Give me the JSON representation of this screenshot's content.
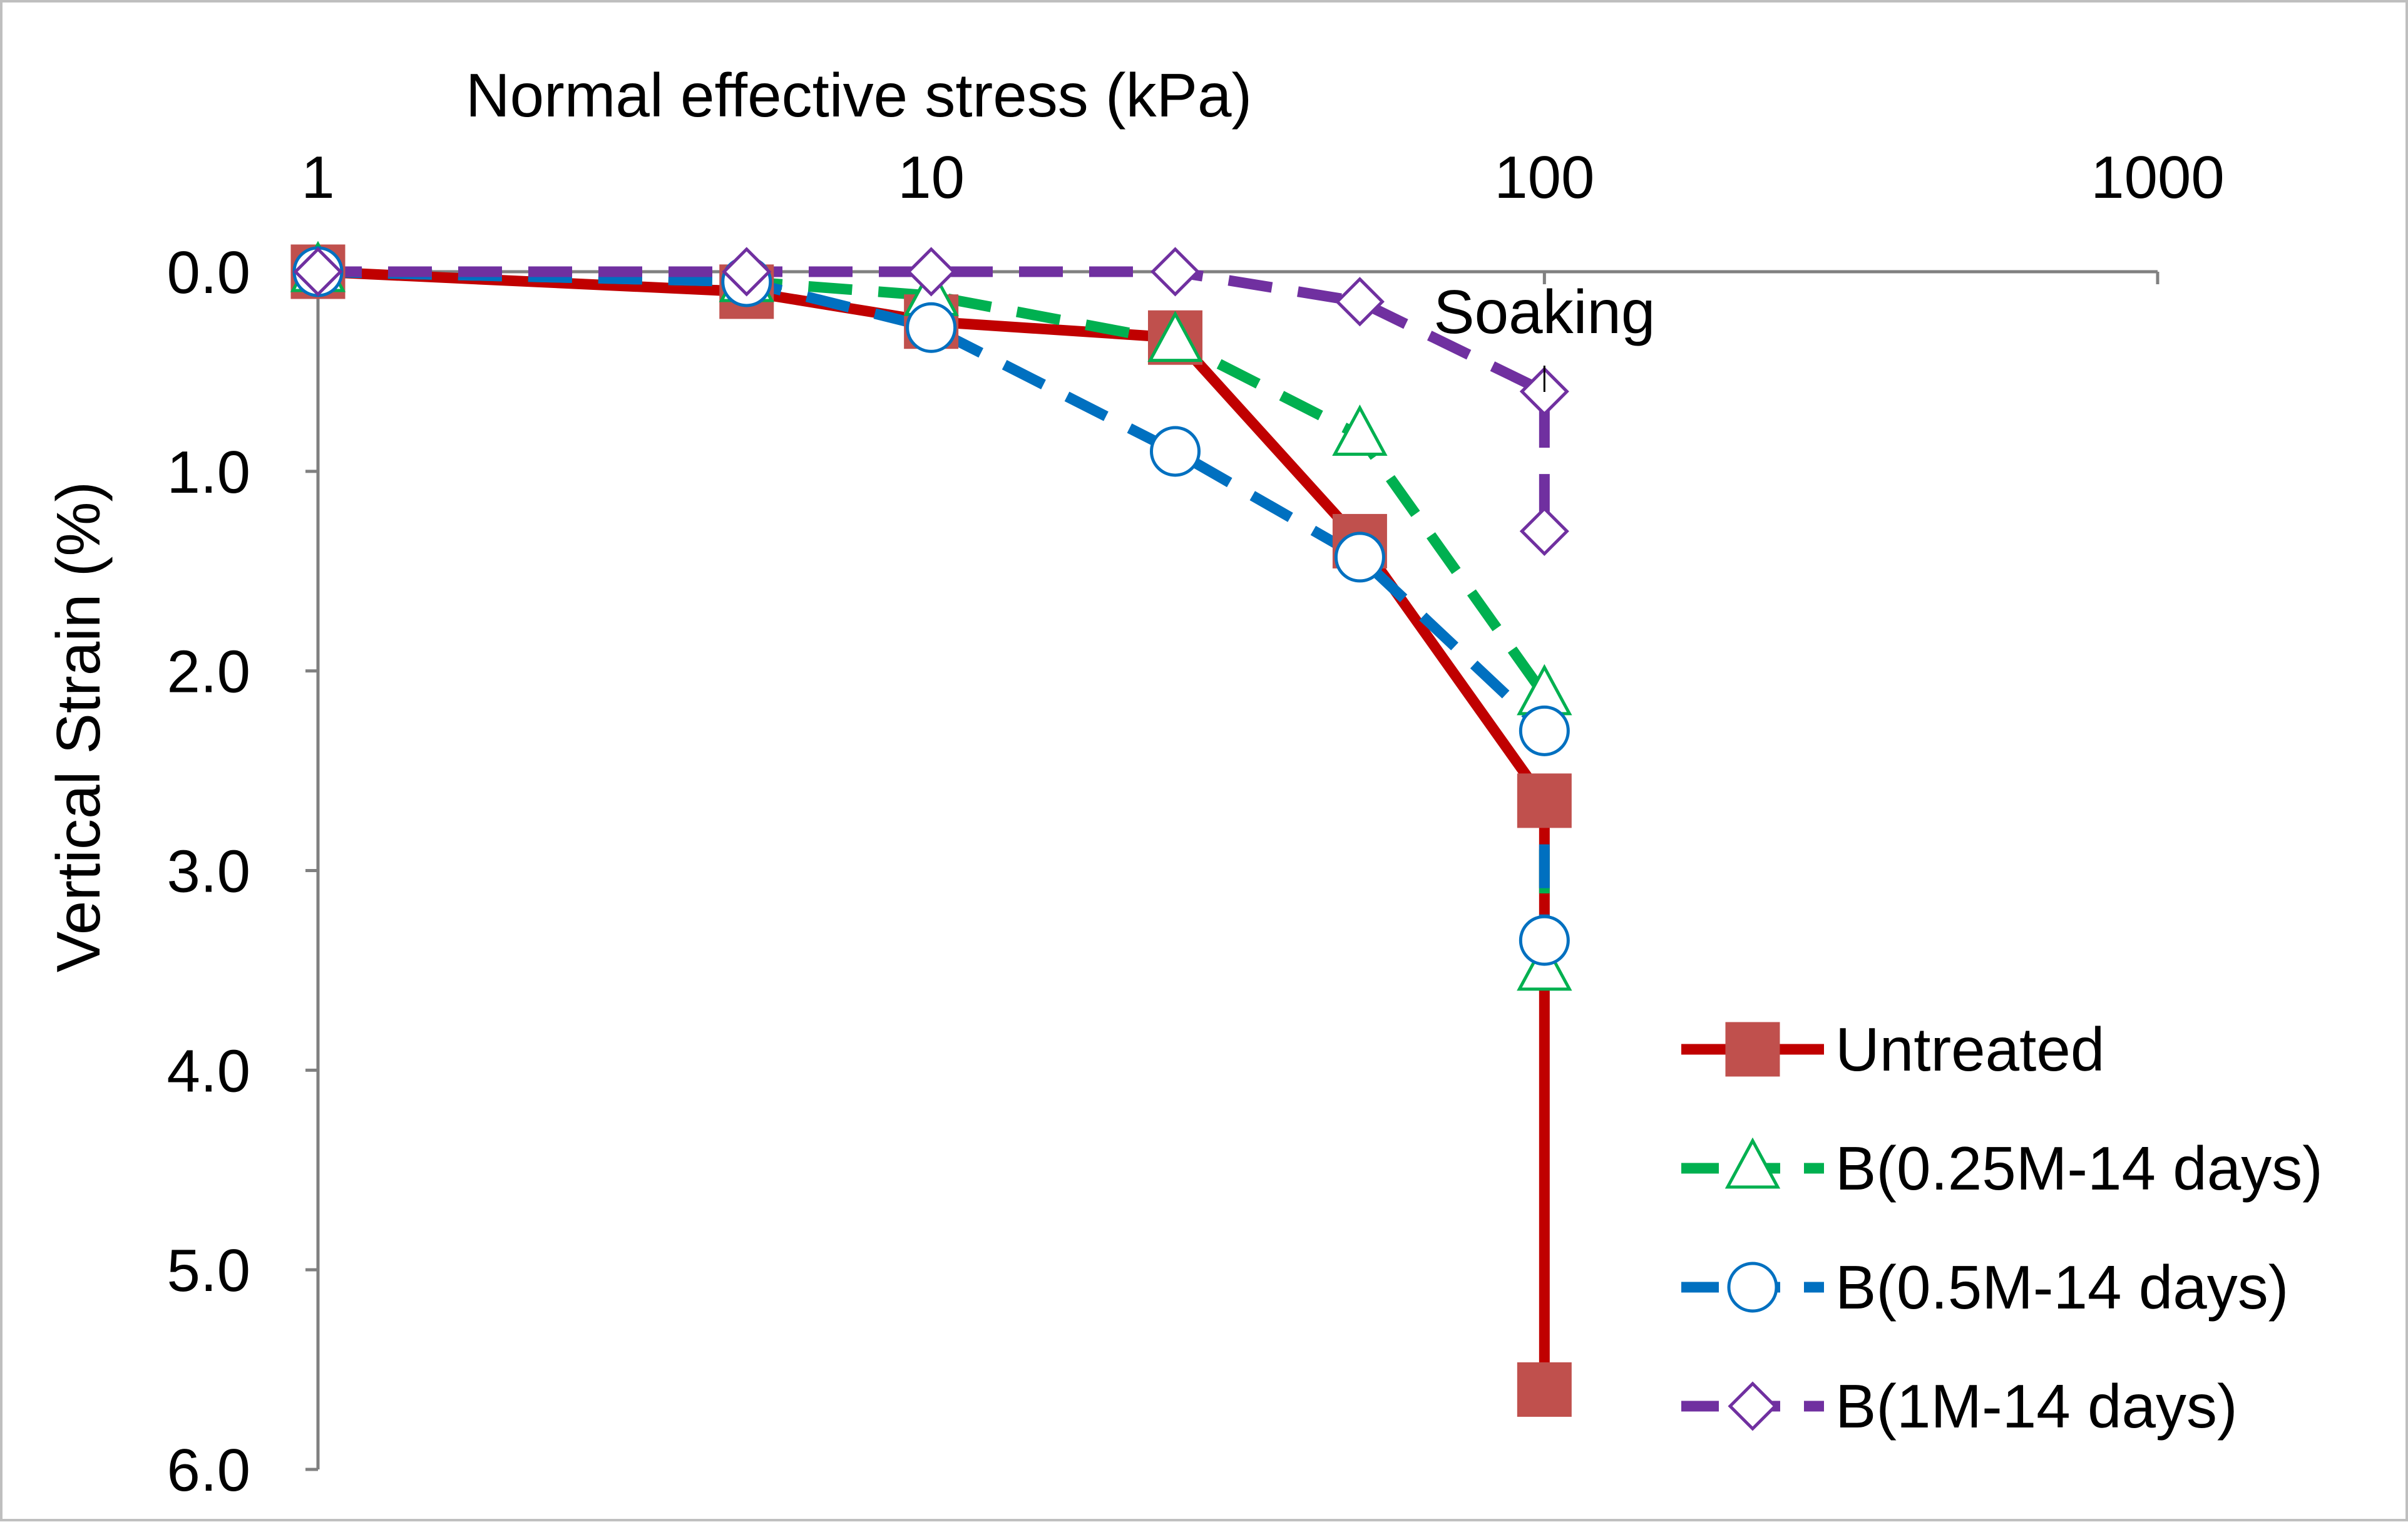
{
  "chart_data": {
    "type": "line",
    "xlabel": "Normal effective stress (kPa)",
    "ylabel": "Vertical Strain (%)",
    "x_scale": "log",
    "x_axis_position": "top",
    "y_axis_reversed": true,
    "xlim": [
      1,
      1000
    ],
    "ylim": [
      0,
      6
    ],
    "x_ticks": [
      "1",
      "10",
      "100",
      "1000"
    ],
    "y_ticks": [
      "0.0",
      "1.0",
      "2.0",
      "3.0",
      "4.0",
      "5.0",
      "6.0"
    ],
    "grid": false,
    "legend_position": "bottom-right",
    "annotation": {
      "text": "Soaking",
      "x": 100,
      "y": 0.45
    },
    "series": [
      {
        "name": "Untreated",
        "color": "#c00000",
        "marker": "square",
        "marker_color": "#c0504d",
        "line_style": "solid",
        "points": [
          [
            1,
            0
          ],
          [
            5,
            0.1
          ],
          [
            10,
            0.25
          ],
          [
            25,
            0.33
          ],
          [
            50,
            1.35
          ],
          [
            100,
            2.65
          ],
          [
            100,
            5.6
          ]
        ]
      },
      {
        "name": "B(0.25M-14 days)",
        "color": "#00b050",
        "marker": "triangle",
        "marker_color": "#00b050",
        "line_style": "dashed",
        "points": [
          [
            1,
            0
          ],
          [
            5,
            0.05
          ],
          [
            10,
            0.12
          ],
          [
            25,
            0.35
          ],
          [
            50,
            0.82
          ],
          [
            100,
            2.12
          ],
          [
            100,
            3.5
          ]
        ]
      },
      {
        "name": "B(0.5M-14 days)",
        "color": "#0070c0",
        "marker": "circle",
        "marker_color": "#0070c0",
        "line_style": "dashed",
        "points": [
          [
            1,
            0
          ],
          [
            5,
            0.05
          ],
          [
            10,
            0.28
          ],
          [
            25,
            0.9
          ],
          [
            50,
            1.43
          ],
          [
            100,
            2.3
          ],
          [
            100,
            3.35
          ]
        ]
      },
      {
        "name": "B(1M-14 days)",
        "color": "#7030a0",
        "marker": "diamond",
        "marker_color": "#7030a0",
        "line_style": "dashed",
        "points": [
          [
            1,
            0
          ],
          [
            5,
            0
          ],
          [
            10,
            0
          ],
          [
            25,
            0
          ],
          [
            50,
            0.15
          ],
          [
            100,
            0.6
          ],
          [
            100,
            1.3
          ]
        ]
      }
    ]
  }
}
